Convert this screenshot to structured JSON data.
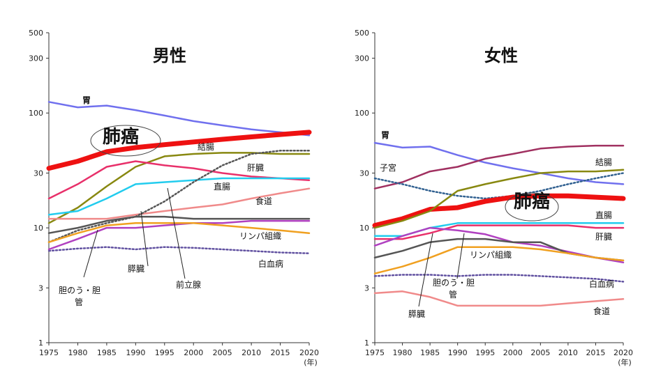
{
  "chart_data": [
    {
      "type": "line",
      "title": "男性",
      "xlabel": "(年)",
      "ylabel": "",
      "y_scale": "log",
      "ylim": [
        1,
        500
      ],
      "xlim": [
        1975,
        2020
      ],
      "x_ticks": [
        "1975",
        "1980",
        "1985",
        "1990",
        "1995",
        "2000",
        "2005",
        "2010",
        "2015",
        "2020"
      ],
      "y_ticks": [
        "1",
        "3",
        "10",
        "30",
        "100",
        "300",
        "500"
      ],
      "x": [
        1975,
        1980,
        1985,
        1990,
        1995,
        2000,
        2005,
        2010,
        2015,
        2020
      ],
      "series": [
        {
          "name": "胃",
          "color": "#7070ee",
          "style": "solid",
          "width": 2.5,
          "values": [
            125,
            112,
            116,
            106,
            95,
            85,
            78,
            72,
            68,
            64
          ]
        },
        {
          "name": "肺癌",
          "color": "#ee1111",
          "style": "solid",
          "width": 7,
          "values": [
            33,
            38,
            46,
            50,
            53,
            56,
            59,
            62,
            65,
            68
          ]
        },
        {
          "name": "結腸",
          "color": "#888810",
          "style": "solid",
          "width": 2.5,
          "values": [
            11,
            15,
            23,
            34,
            42,
            44,
            45,
            45,
            44,
            44
          ]
        },
        {
          "name": "肝臓",
          "color": "#e8306a",
          "style": "solid",
          "width": 2.5,
          "values": [
            18,
            24,
            34,
            38,
            35,
            33,
            30,
            28,
            27,
            26
          ]
        },
        {
          "name": "直腸",
          "color": "#22ccee",
          "style": "solid",
          "width": 2.5,
          "values": [
            13,
            14,
            18,
            24,
            25,
            26,
            27,
            27,
            27,
            27
          ]
        },
        {
          "name": "食道",
          "color": "#f08a8a",
          "style": "solid",
          "width": 2.5,
          "values": [
            12,
            12,
            12,
            13,
            14,
            15,
            16,
            18,
            20,
            22
          ]
        },
        {
          "name": "前立腺",
          "color": "#555555",
          "style": "dotted",
          "width": 2.5,
          "values": [
            7.5,
            9.5,
            11,
            12.5,
            17,
            25,
            35,
            44,
            47,
            47
          ]
        },
        {
          "name": "膵臓",
          "color": "#555555",
          "style": "solid",
          "width": 2.5,
          "values": [
            9,
            10,
            11.5,
            12.5,
            12.5,
            12,
            12,
            12,
            12,
            12
          ]
        },
        {
          "name": "胆のう・胆管",
          "color": "#b040c0",
          "style": "solid",
          "width": 2.5,
          "values": [
            6.5,
            8,
            10,
            10,
            10.5,
            11,
            11,
            11.5,
            11.5,
            11.5
          ]
        },
        {
          "name": "リンパ組織",
          "color": "#f0a020",
          "style": "solid",
          "width": 2.5,
          "values": [
            7.5,
            9,
            10.5,
            11,
            11,
            11,
            10.5,
            10,
            9.5,
            9
          ]
        },
        {
          "name": "白血病",
          "color": "#6050a0",
          "style": "dotted",
          "width": 2.5,
          "values": [
            6.3,
            6.6,
            6.8,
            6.5,
            6.8,
            6.7,
            6.5,
            6.3,
            6.1,
            6.0
          ]
        }
      ],
      "labels": [
        "胃",
        "肺癌",
        "結腸",
        "肝臓",
        "直腸",
        "食道",
        "リンパ組織",
        "白血病",
        "膵臓",
        "前立腺",
        "胆のう・胆",
        "管"
      ]
    },
    {
      "type": "line",
      "title": "女性",
      "xlabel": "(年)",
      "ylabel": "",
      "y_scale": "log",
      "ylim": [
        1,
        500
      ],
      "xlim": [
        1975,
        2020
      ],
      "x_ticks": [
        "1975",
        "1980",
        "1985",
        "1990",
        "1995",
        "2000",
        "2005",
        "2010",
        "2015",
        "2020"
      ],
      "y_ticks": [
        "1",
        "3",
        "10",
        "30",
        "100",
        "300",
        "500"
      ],
      "x": [
        1975,
        1980,
        1985,
        1990,
        1995,
        2000,
        2005,
        2010,
        2015,
        2020
      ],
      "series": [
        {
          "name": "胃",
          "color": "#7070ee",
          "style": "solid",
          "width": 2.5,
          "values": [
            55,
            50,
            51,
            43,
            37,
            33,
            30,
            27,
            25,
            24
          ]
        },
        {
          "name": "結腸",
          "color": "#a03060",
          "style": "solid",
          "width": 2.5,
          "values": [
            22,
            25,
            31,
            34,
            40,
            44,
            49,
            51,
            52,
            52
          ]
        },
        {
          "name": "子宮",
          "color": "#306090",
          "style": "dotted",
          "width": 2.5,
          "values": [
            27,
            24,
            21,
            19,
            18,
            19,
            21,
            24,
            27,
            30
          ]
        },
        {
          "name": "肺癌",
          "color": "#ee1111",
          "style": "solid",
          "width": 7,
          "values": [
            10.5,
            12,
            14.5,
            15,
            17,
            18.5,
            19,
            19,
            18.5,
            18
          ]
        },
        {
          "name": "直腸",
          "color": "#888810",
          "style": "solid",
          "width": 2.5,
          "values": [
            10,
            11.5,
            14,
            21,
            24,
            27,
            30,
            31,
            31,
            32
          ]
        },
        {
          "name": "直腸2",
          "color": "#22ccee",
          "style": "solid",
          "width": 2.5,
          "values": [
            8.5,
            8.5,
            10,
            11,
            11,
            11,
            11,
            11,
            11,
            11
          ]
        },
        {
          "name": "肝臓",
          "color": "#e8306a",
          "style": "solid",
          "width": 2.5,
          "values": [
            8,
            8,
            9,
            10.5,
            10.5,
            10.5,
            10.5,
            10.5,
            10,
            10
          ]
        },
        {
          "name": "膵臓",
          "color": "#b040c0",
          "style": "solid",
          "width": 2.5,
          "values": [
            7,
            8.5,
            10,
            9.5,
            8.8,
            7.5,
            7,
            6.2,
            5.5,
            5
          ]
        },
        {
          "name": "胆のう・胆管",
          "color": "#555555",
          "style": "solid",
          "width": 2.5,
          "values": [
            5.5,
            6.3,
            7.5,
            8,
            8,
            7.5,
            7.5,
            6,
            5.5,
            5.2
          ]
        },
        {
          "name": "リンパ組織",
          "color": "#f0a020",
          "style": "solid",
          "width": 2.5,
          "values": [
            4,
            4.6,
            5.5,
            6.8,
            6.8,
            6.8,
            6.5,
            6,
            5.5,
            5.2
          ]
        },
        {
          "name": "白血病",
          "color": "#6050a0",
          "style": "dotted",
          "width": 2.5,
          "values": [
            3.8,
            3.9,
            3.9,
            3.8,
            3.9,
            3.9,
            3.8,
            3.7,
            3.6,
            3.4
          ]
        },
        {
          "name": "食道",
          "color": "#f08a8a",
          "style": "solid",
          "width": 2.5,
          "values": [
            2.7,
            2.8,
            2.5,
            2.1,
            2.1,
            2.1,
            2.1,
            2.2,
            2.3,
            2.4
          ]
        }
      ],
      "labels": [
        "胃",
        "子宮",
        "結腸",
        "直腸",
        "肺癌",
        "肝臓",
        "リンパ組織",
        "胆のう・胆",
        "管",
        "白血病",
        "膵臓",
        "食道"
      ]
    }
  ]
}
